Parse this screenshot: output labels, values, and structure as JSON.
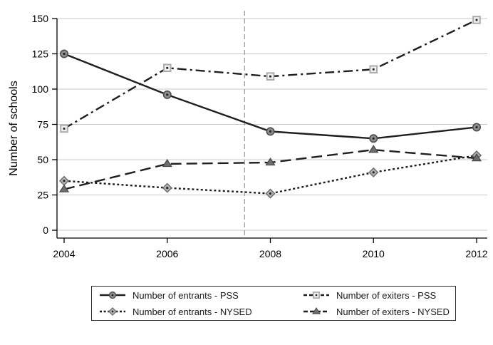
{
  "figure": {
    "background": "#ffffff"
  },
  "chart_data": {
    "type": "line",
    "title": "",
    "xlabel": "",
    "ylabel": "Number of schools",
    "x": [
      2004,
      2006,
      2008,
      2010,
      2012
    ],
    "x_tick_labels": [
      "2004",
      "2006",
      "2008",
      "2010",
      "2012"
    ],
    "y_ticks": [
      0,
      25,
      50,
      75,
      100,
      125,
      150
    ],
    "y_tick_labels": [
      "0",
      "25",
      "50",
      "75",
      "100",
      "125",
      "150"
    ],
    "xlim": [
      2004,
      2012
    ],
    "ylim": [
      0,
      150
    ],
    "grid": "horizontal",
    "reference_line_x": 2007.5,
    "legend_position": "bottom-center",
    "series": [
      {
        "name": "Number of entrants - PSS",
        "values": [
          125,
          96,
          70,
          65,
          73
        ],
        "line_style": "solid",
        "marker": "circle"
      },
      {
        "name": "Number of exiters - PSS",
        "values": [
          72,
          115,
          109,
          114,
          149
        ],
        "line_style": "dash-dot",
        "marker": "square"
      },
      {
        "name": "Number of entrants - NYSED",
        "values": [
          35,
          30,
          26,
          41,
          53
        ],
        "line_style": "dotted",
        "marker": "diamond"
      },
      {
        "name": "Number of exiters - NYSED",
        "values": [
          29,
          47,
          48,
          57,
          51
        ],
        "line_style": "long-dash",
        "marker": "triangle"
      }
    ],
    "colors": {
      "line": "#1f1f1f",
      "grid": "#c8c8c8",
      "axis": "#000000",
      "reference_line": "#9e9e9e",
      "text": "#000000",
      "circle_fill": "#8f8f8f",
      "circle_stroke": "#4d4d4d",
      "square_fill": "#f0f0f0",
      "square_stroke": "#ababab",
      "diamond_fill": "#b5b5b5",
      "diamond_stroke": "#6e6e6e",
      "triangle_fill": "#6e6e6e",
      "triangle_stroke": "#474747",
      "marker_dot": "#222222"
    }
  },
  "legend": {
    "items": [
      {
        "label": "Number of entrants - PSS",
        "series": 0
      },
      {
        "label": "Number of entrants - NYSED",
        "series": 2
      },
      {
        "label": "Number of exiters - PSS",
        "series": 1
      },
      {
        "label": "Number of exiters - NYSED",
        "series": 3
      }
    ]
  }
}
